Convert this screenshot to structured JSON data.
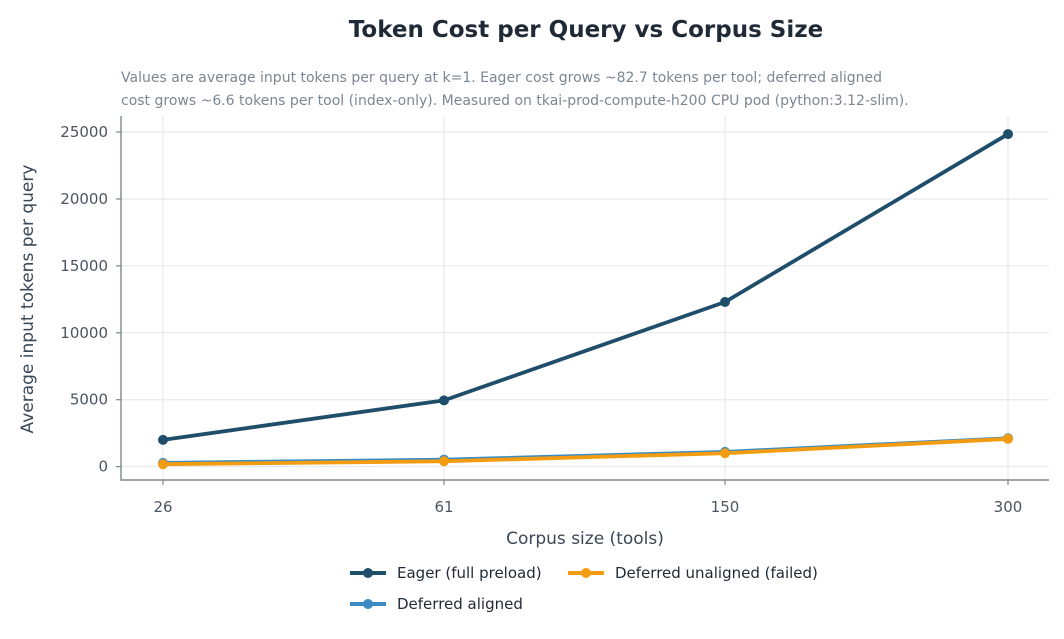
{
  "chart_data": {
    "type": "line",
    "title": "Token Cost per Query vs Corpus Size",
    "subtitle_lines": [
      "Values are average input tokens per query at k=1. Eager cost grows ~82.7 tokens per tool; deferred aligned",
      "cost grows ~6.6 tokens per tool (index-only). Measured on tkai-prod-compute-h200 CPU pod (python:3.12-slim)."
    ],
    "xlabel": "Corpus size (tools)",
    "ylabel": "Average input tokens per query",
    "categories": [
      "26",
      "61",
      "150",
      "300"
    ],
    "y_ticks": [
      0,
      5000,
      10000,
      15000,
      20000,
      25000
    ],
    "ylim": [
      -1000,
      26200
    ],
    "grid": true,
    "legend_position": "bottom",
    "series": [
      {
        "name": "Eager (full preload)",
        "color": "#1f4e6b",
        "values": [
          2000,
          4950,
          12300,
          24850
        ]
      },
      {
        "name": "Deferred aligned",
        "color": "#3a8cc2",
        "values": [
          280,
          520,
          1100,
          2120
        ]
      },
      {
        "name": "Deferred unaligned (failed)",
        "color": "#f39c12",
        "values": [
          180,
          400,
          1000,
          2070
        ]
      }
    ]
  }
}
